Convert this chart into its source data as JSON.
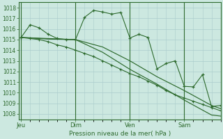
{
  "background_color": "#cce8e0",
  "grid_color": "#aacccc",
  "line_color": "#2d6a2d",
  "marker_color": "#2d6a2d",
  "xlabel": "Pression niveau de la mer( hPa )",
  "ylim": [
    1007.5,
    1018.5
  ],
  "yticks": [
    1008,
    1009,
    1010,
    1011,
    1012,
    1013,
    1014,
    1015,
    1016,
    1017,
    1018
  ],
  "day_labels": [
    "Jeu",
    "Dim",
    "Ven",
    "Sam"
  ],
  "day_positions": [
    0,
    72,
    144,
    216
  ],
  "xlim": [
    -3,
    264
  ],
  "series1_x": [
    0,
    12,
    24,
    36,
    48,
    60,
    72,
    84,
    96,
    108,
    120,
    132,
    144,
    156,
    168,
    180,
    192,
    204,
    216,
    228,
    240,
    252,
    264
  ],
  "series1_y": [
    1015.2,
    1016.4,
    1016.1,
    1015.5,
    1015.1,
    1015.0,
    1015.0,
    1017.1,
    1017.75,
    1017.6,
    1017.4,
    1017.55,
    1015.15,
    1015.5,
    1015.2,
    1012.25,
    1012.75,
    1013.0,
    1010.6,
    1010.55,
    1011.7,
    1008.7,
    1008.8
  ],
  "series2_x": [
    0,
    36,
    72,
    108,
    144,
    180,
    216,
    252,
    264
  ],
  "series2_y": [
    1015.2,
    1015.1,
    1015.0,
    1014.3,
    1013.0,
    1011.5,
    1010.2,
    1008.8,
    1008.5
  ],
  "series3_x": [
    0,
    36,
    72,
    108,
    144,
    180,
    216,
    252,
    264
  ],
  "series3_y": [
    1015.2,
    1015.05,
    1015.0,
    1013.8,
    1012.2,
    1010.8,
    1009.3,
    1007.9,
    1007.8
  ],
  "series4_x": [
    0,
    12,
    24,
    36,
    48,
    60,
    72,
    84,
    96,
    108,
    120,
    132,
    144,
    156,
    168,
    180,
    192,
    204,
    216,
    228,
    240,
    252,
    264
  ],
  "series4_y": [
    1015.2,
    1015.1,
    1015.0,
    1014.8,
    1014.5,
    1014.3,
    1014.0,
    1013.7,
    1013.4,
    1013.0,
    1012.6,
    1012.2,
    1011.8,
    1011.5,
    1011.1,
    1010.7,
    1010.2,
    1009.8,
    1009.5,
    1009.2,
    1008.9,
    1008.6,
    1008.3
  ]
}
